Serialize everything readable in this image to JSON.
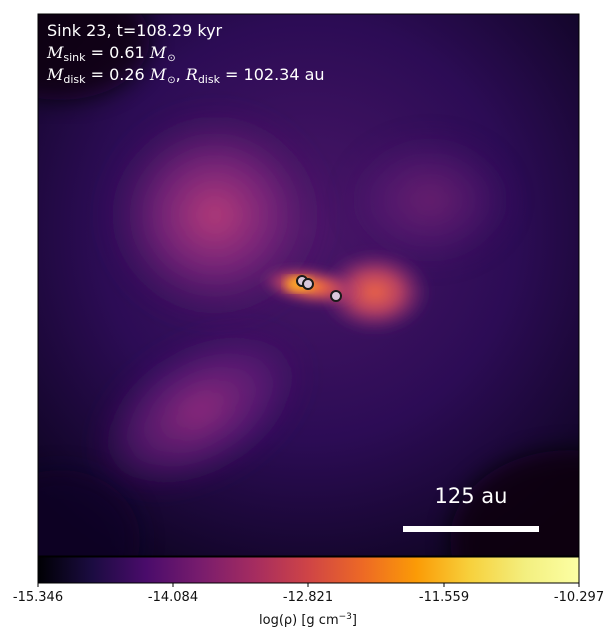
{
  "annotation": {
    "line1": "Sink 23, t=108.29 kyr",
    "msink_symbol": "M",
    "msink_sub": "sink",
    "msink_value": " = 0.61 ",
    "mdisk_symbol": "M",
    "mdisk_sub": "disk",
    "mdisk_value": " = 0.26 ",
    "rdisk_symbol": "R",
    "rdisk_sub": "disk",
    "rdisk_value": " = 102.34 au",
    "solar_unit": "M",
    "solar_symbol": "⊙"
  },
  "scale_bar": {
    "label": "125 au"
  },
  "colorbar": {
    "colormap": "plasma-like (inferno/magma)",
    "ticks": [
      "-15.346",
      "-14.084",
      "-12.821",
      "-11.559",
      "-10.297"
    ],
    "label_main": "log(ρ) [g cm",
    "label_exp": "−3",
    "label_close": "]",
    "min": -15.346,
    "max": -10.297
  },
  "sinks": [
    {
      "x": 302,
      "y": 281
    },
    {
      "x": 308,
      "y": 284
    },
    {
      "x": 336,
      "y": 296
    }
  ]
}
